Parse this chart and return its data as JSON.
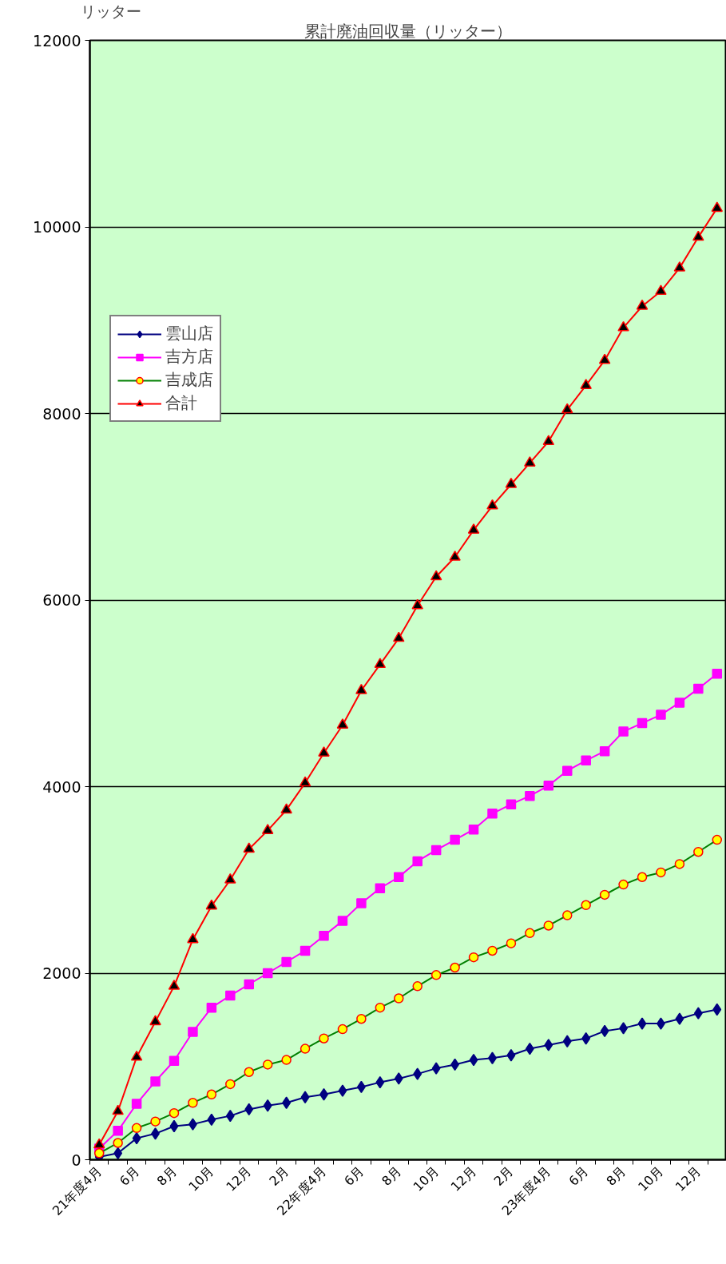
{
  "chart_data": {
    "type": "line",
    "title": "累計廃油回収量（リッター）",
    "ylabel": "リッター",
    "categories": [
      "21年度4月",
      null,
      "6月",
      null,
      "8月",
      null,
      "10月",
      null,
      "12月",
      null,
      "2月",
      null,
      "22年度4月",
      null,
      "6月",
      null,
      "8月",
      null,
      "10月",
      null,
      "12月",
      null,
      "2月",
      null,
      "23年度4月",
      null,
      "6月",
      null,
      "8月",
      null,
      "10月",
      null,
      "12月",
      null
    ],
    "series": [
      {
        "name": "雲山店",
        "color": "#000080",
        "marker": "diamond",
        "values": [
          30,
          70,
          230,
          280,
          360,
          380,
          430,
          470,
          540,
          580,
          610,
          670,
          700,
          740,
          780,
          830,
          870,
          920,
          980,
          1020,
          1070,
          1090,
          1120,
          1190,
          1230,
          1270,
          1300,
          1380,
          1410,
          1460,
          1460,
          1510,
          1570,
          1610
        ]
      },
      {
        "name": "吉方店",
        "color": "#ff00ff",
        "marker": "square",
        "values": [
          120,
          310,
          600,
          840,
          1060,
          1370,
          1630,
          1760,
          1880,
          2000,
          2120,
          2240,
          2400,
          2560,
          2750,
          2910,
          3030,
          3200,
          3320,
          3430,
          3540,
          3710,
          3810,
          3900,
          4010,
          4170,
          4280,
          4380,
          4590,
          4680,
          4770,
          4900,
          5050,
          5210
        ]
      },
      {
        "name": "吉成店",
        "color": "#008000",
        "marker": "circle",
        "values": [
          70,
          180,
          340,
          410,
          500,
          610,
          700,
          810,
          940,
          1020,
          1070,
          1190,
          1300,
          1400,
          1510,
          1630,
          1730,
          1860,
          1980,
          2060,
          2170,
          2240,
          2320,
          2430,
          2510,
          2620,
          2730,
          2840,
          2950,
          3030,
          3080,
          3170,
          3300,
          3430
        ]
      },
      {
        "name": "合計",
        "color": "#ff0000",
        "marker": "triangle",
        "values": [
          160,
          520,
          1100,
          1480,
          1860,
          2360,
          2720,
          3000,
          3330,
          3530,
          3750,
          4040,
          4360,
          4660,
          5030,
          5310,
          5590,
          5940,
          6250,
          6460,
          6750,
          7010,
          7240,
          7470,
          7700,
          8040,
          8300,
          8570,
          8920,
          9150,
          9310,
          9560,
          9890,
          10200
        ]
      }
    ],
    "ylim": [
      0,
      12000
    ],
    "yticks": [
      0,
      2000,
      4000,
      6000,
      8000,
      10000,
      12000
    ],
    "grid": "y",
    "legend": "top left"
  }
}
